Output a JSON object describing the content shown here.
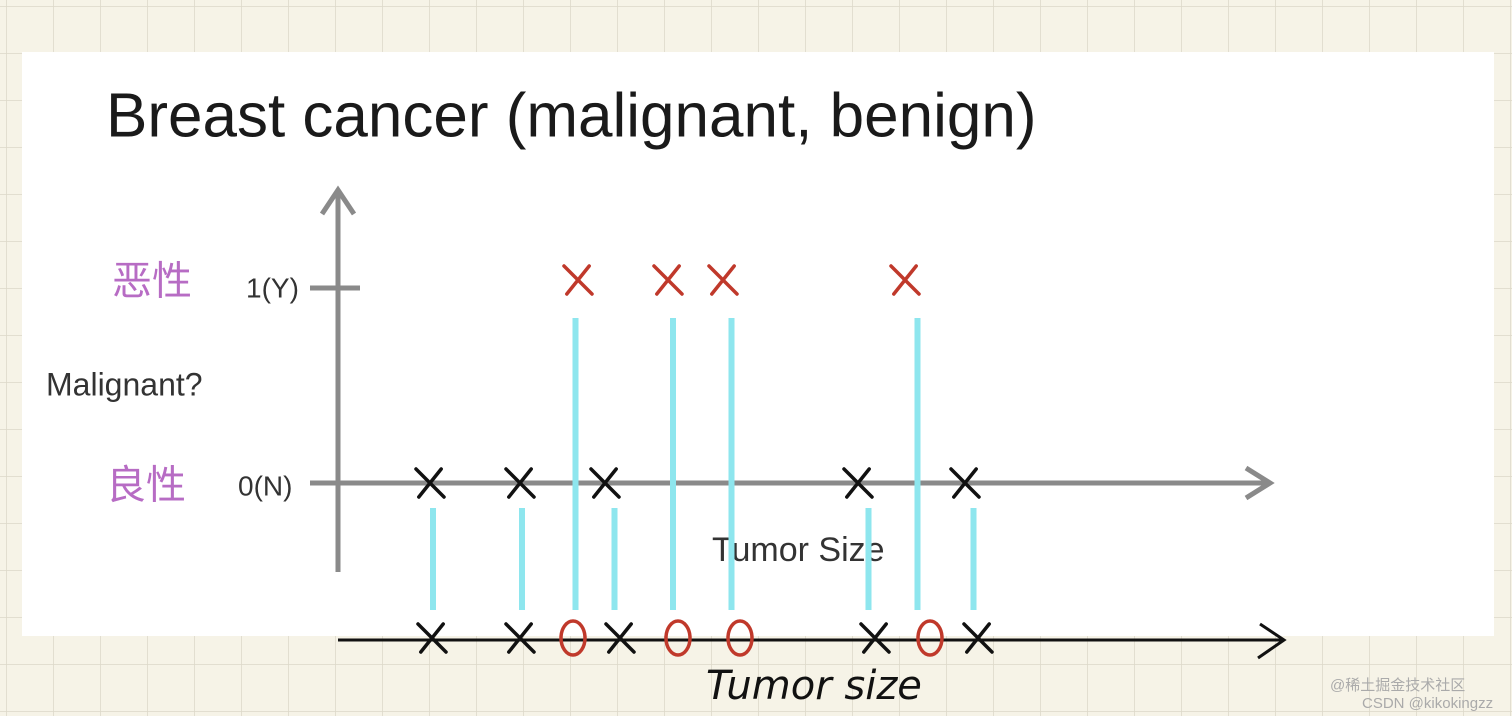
{
  "title": "Breast cancer (malignant, benign)",
  "y_axis": {
    "malignant_cn": "恶性",
    "one_label": "1(Y)",
    "question": "Malignant?",
    "benign_cn": "良性",
    "zero_label": "0(N)"
  },
  "x_axis_label": "Tumor Size",
  "handwritten_label": "Tumor size",
  "watermark": {
    "line1": "@稀土掘金技术社区",
    "line2": "CSDN @kikokingzz"
  }
}
